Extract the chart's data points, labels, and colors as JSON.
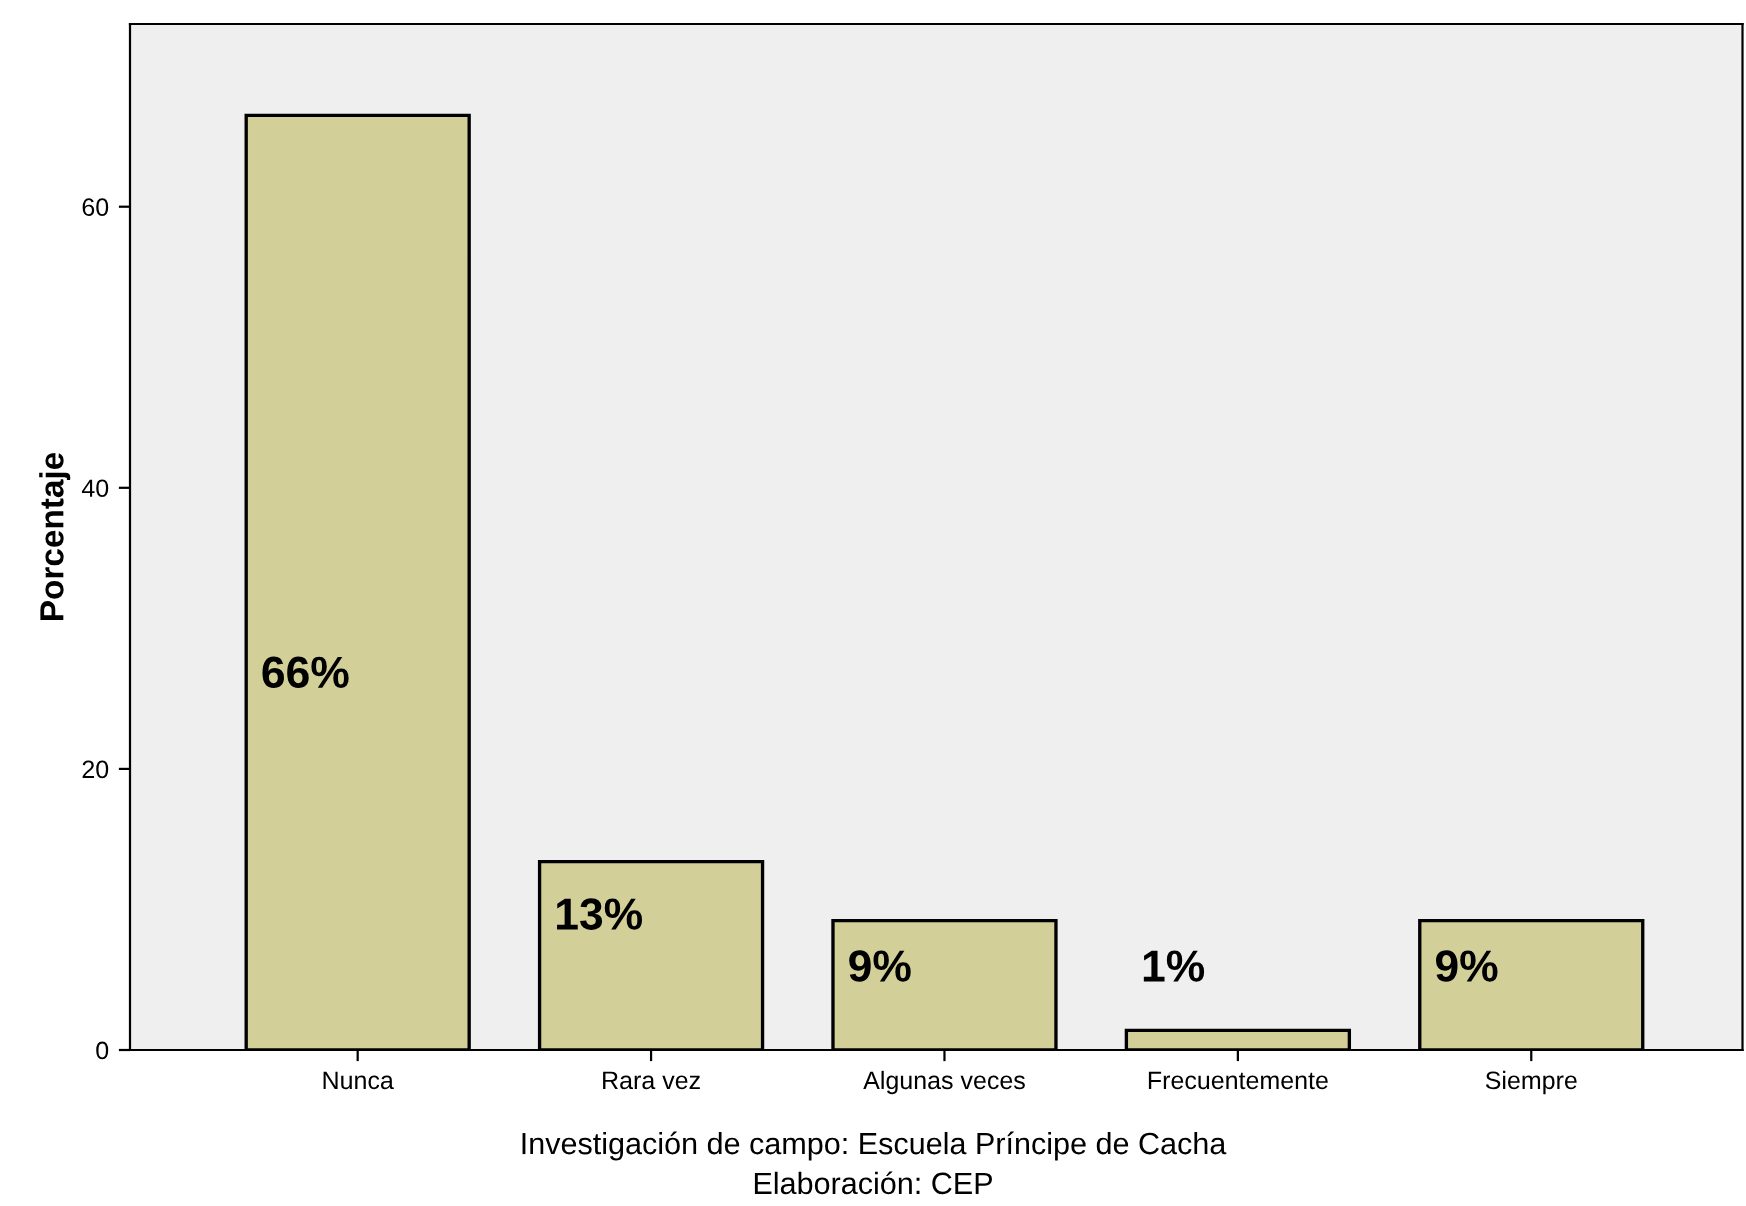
{
  "chart_data": {
    "type": "bar",
    "ylabel": "Porcentaje",
    "categories": [
      "Nunca",
      "Rara vez",
      "Algunas veces",
      "Frecuentemente",
      "Siempre"
    ],
    "values": [
      66.5,
      13.4,
      9.2,
      1.4,
      9.2
    ],
    "value_labels": [
      "66%",
      "13%",
      "9%",
      "1%",
      "9%"
    ],
    "color": "#d3cf98",
    "ylim": [
      0,
      73
    ],
    "yticks": [
      0,
      20,
      40,
      60
    ],
    "grid": false,
    "annotations": [
      "Investigación de campo: Escuela Príncipe de Cacha",
      "Elaboración: CEP"
    ]
  }
}
